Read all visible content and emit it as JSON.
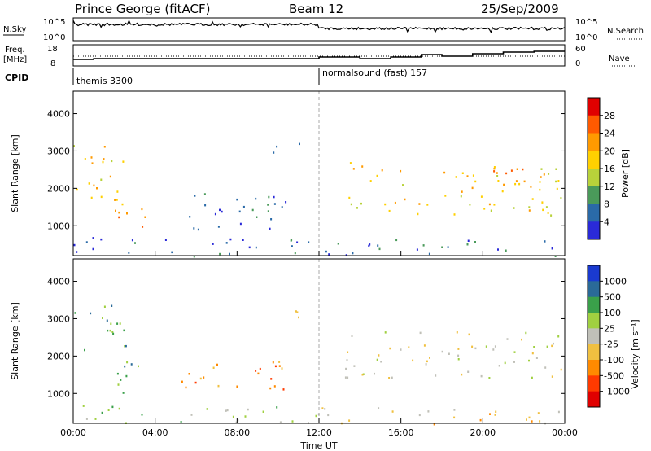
{
  "header": {
    "station": "Prince George (fitACF)",
    "beam": "Beam 12",
    "date": "25/Sep/2009"
  },
  "sky_panel": {
    "left_label": "N.Sky",
    "left_ticks": [
      "10^5",
      "10^0"
    ],
    "right_ticks": [
      "10^5",
      "10^0"
    ],
    "right_label": "N.Search"
  },
  "freq_panel": {
    "left_label_1": "Freq.",
    "left_label_2": "[MHz]",
    "left_ticks": [
      "18",
      "8"
    ],
    "right_ticks": [
      "60",
      "0"
    ],
    "right_label": "Nave"
  },
  "cpid": {
    "label": "CPID",
    "segments": [
      {
        "name": "themis 3300",
        "start_hour": 0
      },
      {
        "name": "normalsound (fast) 157",
        "start_hour": 12
      }
    ]
  },
  "chart_data": [
    {
      "type": "heatmap",
      "panel": "power",
      "ylabel": "Slant Range [km]",
      "xlabel": "",
      "xlim_hours": [
        0,
        24
      ],
      "ylim": [
        200,
        4600
      ],
      "y_ticks": [
        1000,
        2000,
        3000,
        4000
      ],
      "x_ticks": [
        "00:00",
        "04:00",
        "08:00",
        "12:00",
        "16:00",
        "20:00",
        "00:00"
      ],
      "colorbar": {
        "label": "Power [dB]",
        "ticks": [
          "28",
          "24",
          "20",
          "16",
          "12",
          "8",
          "4"
        ],
        "colors": [
          "#e00000",
          "#ff5a00",
          "#ff9a00",
          "#ffd000",
          "#b8d23a",
          "#4a9a5a",
          "#2a6aa8",
          "#2a2ad8"
        ]
      },
      "scatter_regions": [
        {
          "t0": 0.0,
          "t1": 2.6,
          "r0": 1500,
          "r1": 3300,
          "level": 4
        },
        {
          "t0": 1.5,
          "t1": 3.6,
          "r0": 900,
          "r1": 1800,
          "level": 5
        },
        {
          "t0": 0.0,
          "t1": 12.0,
          "r0": 200,
          "r1": 700,
          "level": 1
        },
        {
          "t0": 12.0,
          "t1": 24.0,
          "r0": 200,
          "r1": 650,
          "level": 1
        },
        {
          "t0": 13.2,
          "t1": 15.2,
          "r0": 1500,
          "r1": 2800,
          "level": 4
        },
        {
          "t0": 15.0,
          "t1": 24.0,
          "r0": 1300,
          "r1": 2600,
          "level": 4
        },
        {
          "t0": 20.5,
          "t1": 24.0,
          "r0": 1900,
          "r1": 2600,
          "level": 5
        },
        {
          "t0": 5.0,
          "t1": 10.5,
          "r0": 900,
          "r1": 2000,
          "level": 1
        },
        {
          "t0": 9.5,
          "t1": 11.5,
          "r0": 2900,
          "r1": 3300,
          "level": 1
        }
      ]
    },
    {
      "type": "heatmap",
      "panel": "velocity",
      "ylabel": "Slant Range [km]",
      "xlabel": "Time UT",
      "xlim_hours": [
        0,
        24
      ],
      "ylim": [
        200,
        4600
      ],
      "y_ticks": [
        1000,
        2000,
        3000,
        4000
      ],
      "x_ticks": [
        "00:00",
        "04:00",
        "08:00",
        "12:00",
        "16:00",
        "20:00",
        "00:00"
      ],
      "colorbar": {
        "label": "Velocity [m s⁻¹]",
        "ticks": [
          "1000",
          "500",
          "100",
          "25",
          "-25",
          "-100",
          "-500",
          "-1000"
        ],
        "colors": [
          "#1a3ad0",
          "#2a6a98",
          "#3aa04a",
          "#a0d040",
          "#c0c0b8",
          "#f0c040",
          "#ff8a00",
          "#ff3a00",
          "#e00000"
        ]
      },
      "scatter_regions": [
        {
          "t0": 0.0,
          "t1": 2.6,
          "r0": 1800,
          "r1": 3400,
          "level": 6
        },
        {
          "t0": 1.5,
          "t1": 3.6,
          "r0": 1000,
          "r1": 1900,
          "level": 6
        },
        {
          "t0": 0.0,
          "t1": 12.0,
          "r0": 200,
          "r1": 700,
          "level": 5
        },
        {
          "t0": 12.0,
          "t1": 24.0,
          "r0": 200,
          "r1": 650,
          "level": 3
        },
        {
          "t0": 13.2,
          "t1": 24.0,
          "r0": 1400,
          "r1": 2700,
          "level": 4
        },
        {
          "t0": 5.0,
          "t1": 10.5,
          "r0": 1100,
          "r1": 2000,
          "level": 2
        },
        {
          "t0": 9.5,
          "t1": 11.5,
          "r0": 2900,
          "r1": 3300,
          "level": 4
        }
      ]
    }
  ]
}
